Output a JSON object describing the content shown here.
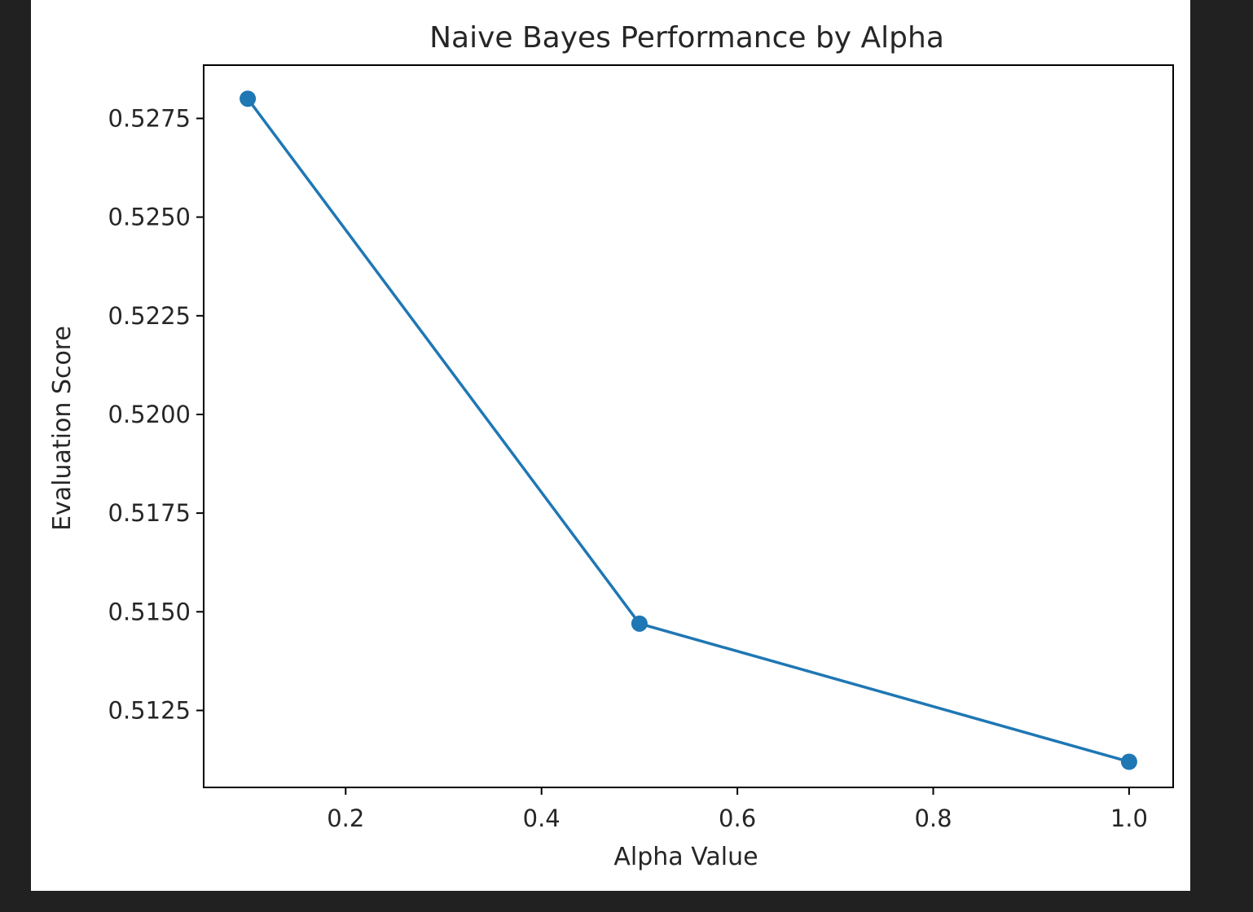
{
  "chart_data": {
    "type": "line",
    "title": "Naive Bayes Performance by Alpha",
    "xlabel": "Alpha Value",
    "ylabel": "Evaluation Score",
    "x": [
      0.1,
      0.5,
      1.0
    ],
    "series": [
      {
        "values": [
          0.528,
          0.5147,
          0.5112
        ],
        "color": "#1f77b4",
        "marker": "circle"
      }
    ],
    "xlim": [
      0.055,
      1.045
    ],
    "ylim": [
      0.51055,
      0.52885
    ],
    "xticks": [
      0.2,
      0.4,
      0.6,
      0.8,
      1.0
    ],
    "xtick_labels": [
      "0.2",
      "0.4",
      "0.6",
      "0.8",
      "1.0"
    ],
    "yticks": [
      0.5125,
      0.515,
      0.5175,
      0.52,
      0.5225,
      0.525,
      0.5275
    ],
    "ytick_labels": [
      "0.5125",
      "0.5150",
      "0.5175",
      "0.5200",
      "0.5225",
      "0.5250",
      "0.5275"
    ],
    "grid": false,
    "legend": "none",
    "background": "#212121",
    "figure_background": "#ffffff"
  }
}
